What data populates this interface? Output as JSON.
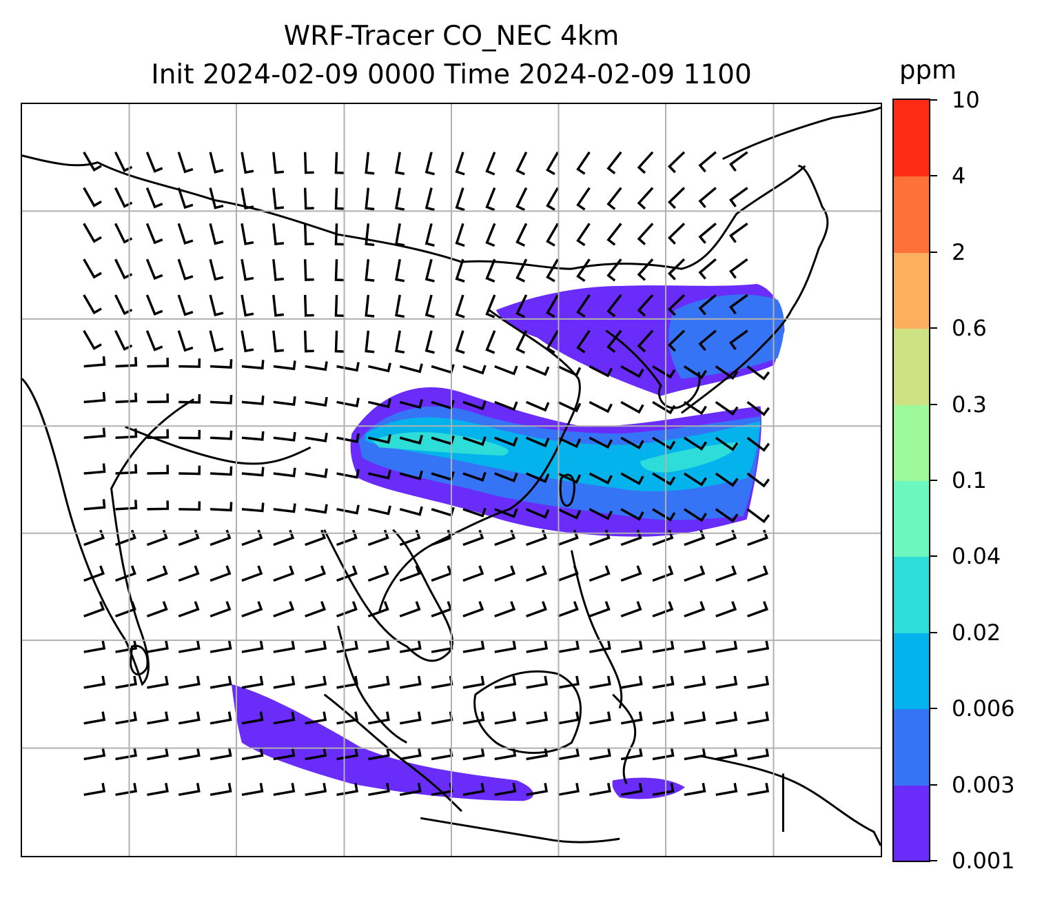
{
  "title": {
    "line1": "WRF-Tracer CO_NEC 4km",
    "line2": "Init 2024-02-09 0000 Time 2024-02-09 1100"
  },
  "colorbar": {
    "unit": "ppm",
    "levels": [
      "0.001",
      "0.003",
      "0.006",
      "0.02",
      "0.04",
      "0.1",
      "0.3",
      "0.6",
      "2",
      "4",
      "10"
    ],
    "colors": [
      "#6a2cf8",
      "#3574f5",
      "#05b3ec",
      "#2edcd8",
      "#6cf7be",
      "#9df99a",
      "#cfe283",
      "#fcaf5f",
      "#fe7139",
      "#fe2b15"
    ]
  },
  "map": {
    "gridlines": true,
    "plume_colors": {
      "low": "#6a2cf8",
      "mid": "#3574f5",
      "high": "#05b3ec",
      "peak": "#2edcd8"
    }
  }
}
